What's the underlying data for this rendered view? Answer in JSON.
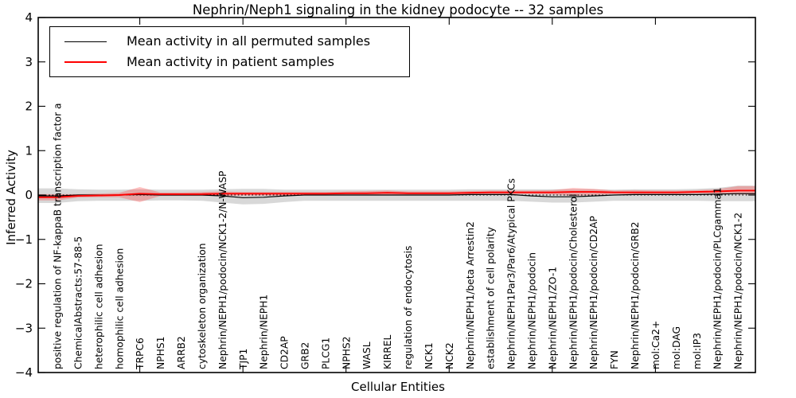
{
  "title": "Nephrin/Neph1 signaling in the kidney podocyte -- 32 samples",
  "axes": {
    "x_label": "Cellular Entities",
    "y_label": "Inferred Activity",
    "y_ticks": [
      "4",
      "3",
      "2",
      "1",
      "0",
      "−1",
      "−2",
      "−3",
      "−4"
    ]
  },
  "legend": {
    "entries": [
      {
        "label": "Mean activity in all permuted samples",
        "color": "#000000"
      },
      {
        "label": "Mean activity in patient samples",
        "color": "#ff0000"
      }
    ]
  },
  "colors": {
    "permuted_line": "#000000",
    "patient_line": "#ff0000",
    "permuted_band": "#999999",
    "patient_band": "#ff3333",
    "zero_line": "#000000",
    "background": "#ffffff"
  },
  "chart_data": {
    "type": "line",
    "title": "Nephrin/Neph1 signaling in the kidney podocyte -- 32 samples",
    "xlabel": "Cellular Entities",
    "ylabel": "Inferred Activity",
    "ylim": [
      -4,
      4
    ],
    "grid": false,
    "zero_reference_line": true,
    "legend_position": "upper left",
    "categories": [
      "positive regulation of NF-kappaB transcription factor a",
      "ChemicalAbstracts:57-88-5",
      "heterophilic cell adhesion",
      "homophilic cell adhesion",
      "TRPC6",
      "NPHS1",
      "ARRB2",
      "cytoskeleton organization",
      "Nephrin/NEPH1/podocin/NCK1-2/N-WASP",
      "TJP1",
      "Nephrin/NEPH1",
      "CD2AP",
      "GRB2",
      "PLCG1",
      "NPHS2",
      "WASL",
      "KIRREL",
      "regulation of endocytosis",
      "NCK1",
      "NCK2",
      "Nephrin/NEPH1/beta Arrestin2",
      "establishment of cell polarity",
      "Nephrin/NEPH1Par3/Par6/Atypical PKCs",
      "Nephrin/NEPH1/podocin",
      "Nephrin/NEPH1/ZO-1",
      "Nephrin/NEPH1/podocin/Cholesterol",
      "Nephrin/NEPH1/podocin/CD2AP",
      "FYN",
      "Nephrin/NEPH1/podocin/GRB2",
      "mol:Ca2+",
      "mol:DAG",
      "mol:IP3",
      "Nephrin/NEPH1/podocin/PLCgamma1",
      "Nephrin/NEPH1/podocin/NCK1-2"
    ],
    "series": [
      {
        "name": "Mean activity in all permuted samples",
        "color": "#000000",
        "width": 1.2,
        "values": [
          -0.02,
          0.0,
          0.0,
          0.0,
          0.01,
          0.0,
          0.0,
          0.0,
          -0.02,
          -0.06,
          -0.05,
          -0.02,
          0.0,
          0.0,
          0.0,
          0.0,
          0.0,
          0.0,
          0.0,
          0.0,
          0.01,
          0.01,
          0.01,
          -0.02,
          -0.04,
          -0.04,
          -0.02,
          0.0,
          0.01,
          0.01,
          0.01,
          0.01,
          0.02,
          0.03
        ]
      },
      {
        "name": "Mean activity in patient samples",
        "color": "#ff0000",
        "width": 1.9,
        "values": [
          -0.05,
          -0.02,
          -0.01,
          0.0,
          0.03,
          0.02,
          0.02,
          0.02,
          0.03,
          0.03,
          0.03,
          0.03,
          0.03,
          0.03,
          0.04,
          0.04,
          0.05,
          0.04,
          0.04,
          0.04,
          0.05,
          0.06,
          0.06,
          0.06,
          0.06,
          0.07,
          0.07,
          0.06,
          0.06,
          0.06,
          0.06,
          0.07,
          0.08,
          0.1
        ]
      }
    ],
    "bands": [
      {
        "name": "permuted-spread",
        "color": "#999999",
        "opacity": 0.38,
        "upper": [
          0.15,
          0.13,
          0.12,
          0.12,
          0.13,
          0.12,
          0.12,
          0.12,
          0.13,
          0.14,
          0.14,
          0.12,
          0.12,
          0.12,
          0.12,
          0.12,
          0.12,
          0.12,
          0.12,
          0.12,
          0.13,
          0.13,
          0.13,
          0.13,
          0.13,
          0.13,
          0.13,
          0.12,
          0.13,
          0.13,
          0.13,
          0.14,
          0.16,
          0.21
        ],
        "lower": [
          -0.18,
          -0.14,
          -0.13,
          -0.13,
          -0.13,
          -0.12,
          -0.12,
          -0.13,
          -0.17,
          -0.21,
          -0.2,
          -0.16,
          -0.13,
          -0.13,
          -0.13,
          -0.13,
          -0.13,
          -0.13,
          -0.13,
          -0.13,
          -0.13,
          -0.13,
          -0.13,
          -0.15,
          -0.17,
          -0.17,
          -0.15,
          -0.13,
          -0.13,
          -0.13,
          -0.13,
          -0.13,
          -0.14,
          -0.14
        ]
      },
      {
        "name": "patient-spread",
        "color": "#ff3333",
        "opacity": 0.3,
        "upper": [
          0.02,
          0.02,
          0.03,
          0.05,
          0.18,
          0.06,
          0.06,
          0.07,
          0.08,
          0.07,
          0.07,
          0.07,
          0.07,
          0.07,
          0.08,
          0.09,
          0.1,
          0.08,
          0.08,
          0.08,
          0.09,
          0.1,
          0.1,
          0.1,
          0.11,
          0.16,
          0.14,
          0.1,
          0.11,
          0.1,
          0.1,
          0.11,
          0.13,
          0.2
        ],
        "lower": [
          -0.12,
          -0.06,
          -0.05,
          -0.05,
          -0.16,
          -0.02,
          -0.02,
          -0.02,
          -0.02,
          -0.01,
          -0.01,
          -0.01,
          -0.01,
          -0.01,
          0.0,
          0.0,
          0.0,
          0.0,
          0.0,
          0.0,
          0.01,
          0.02,
          0.02,
          0.02,
          0.01,
          -0.02,
          0.0,
          0.02,
          0.02,
          0.02,
          0.02,
          0.03,
          0.03,
          0.01
        ]
      }
    ]
  }
}
